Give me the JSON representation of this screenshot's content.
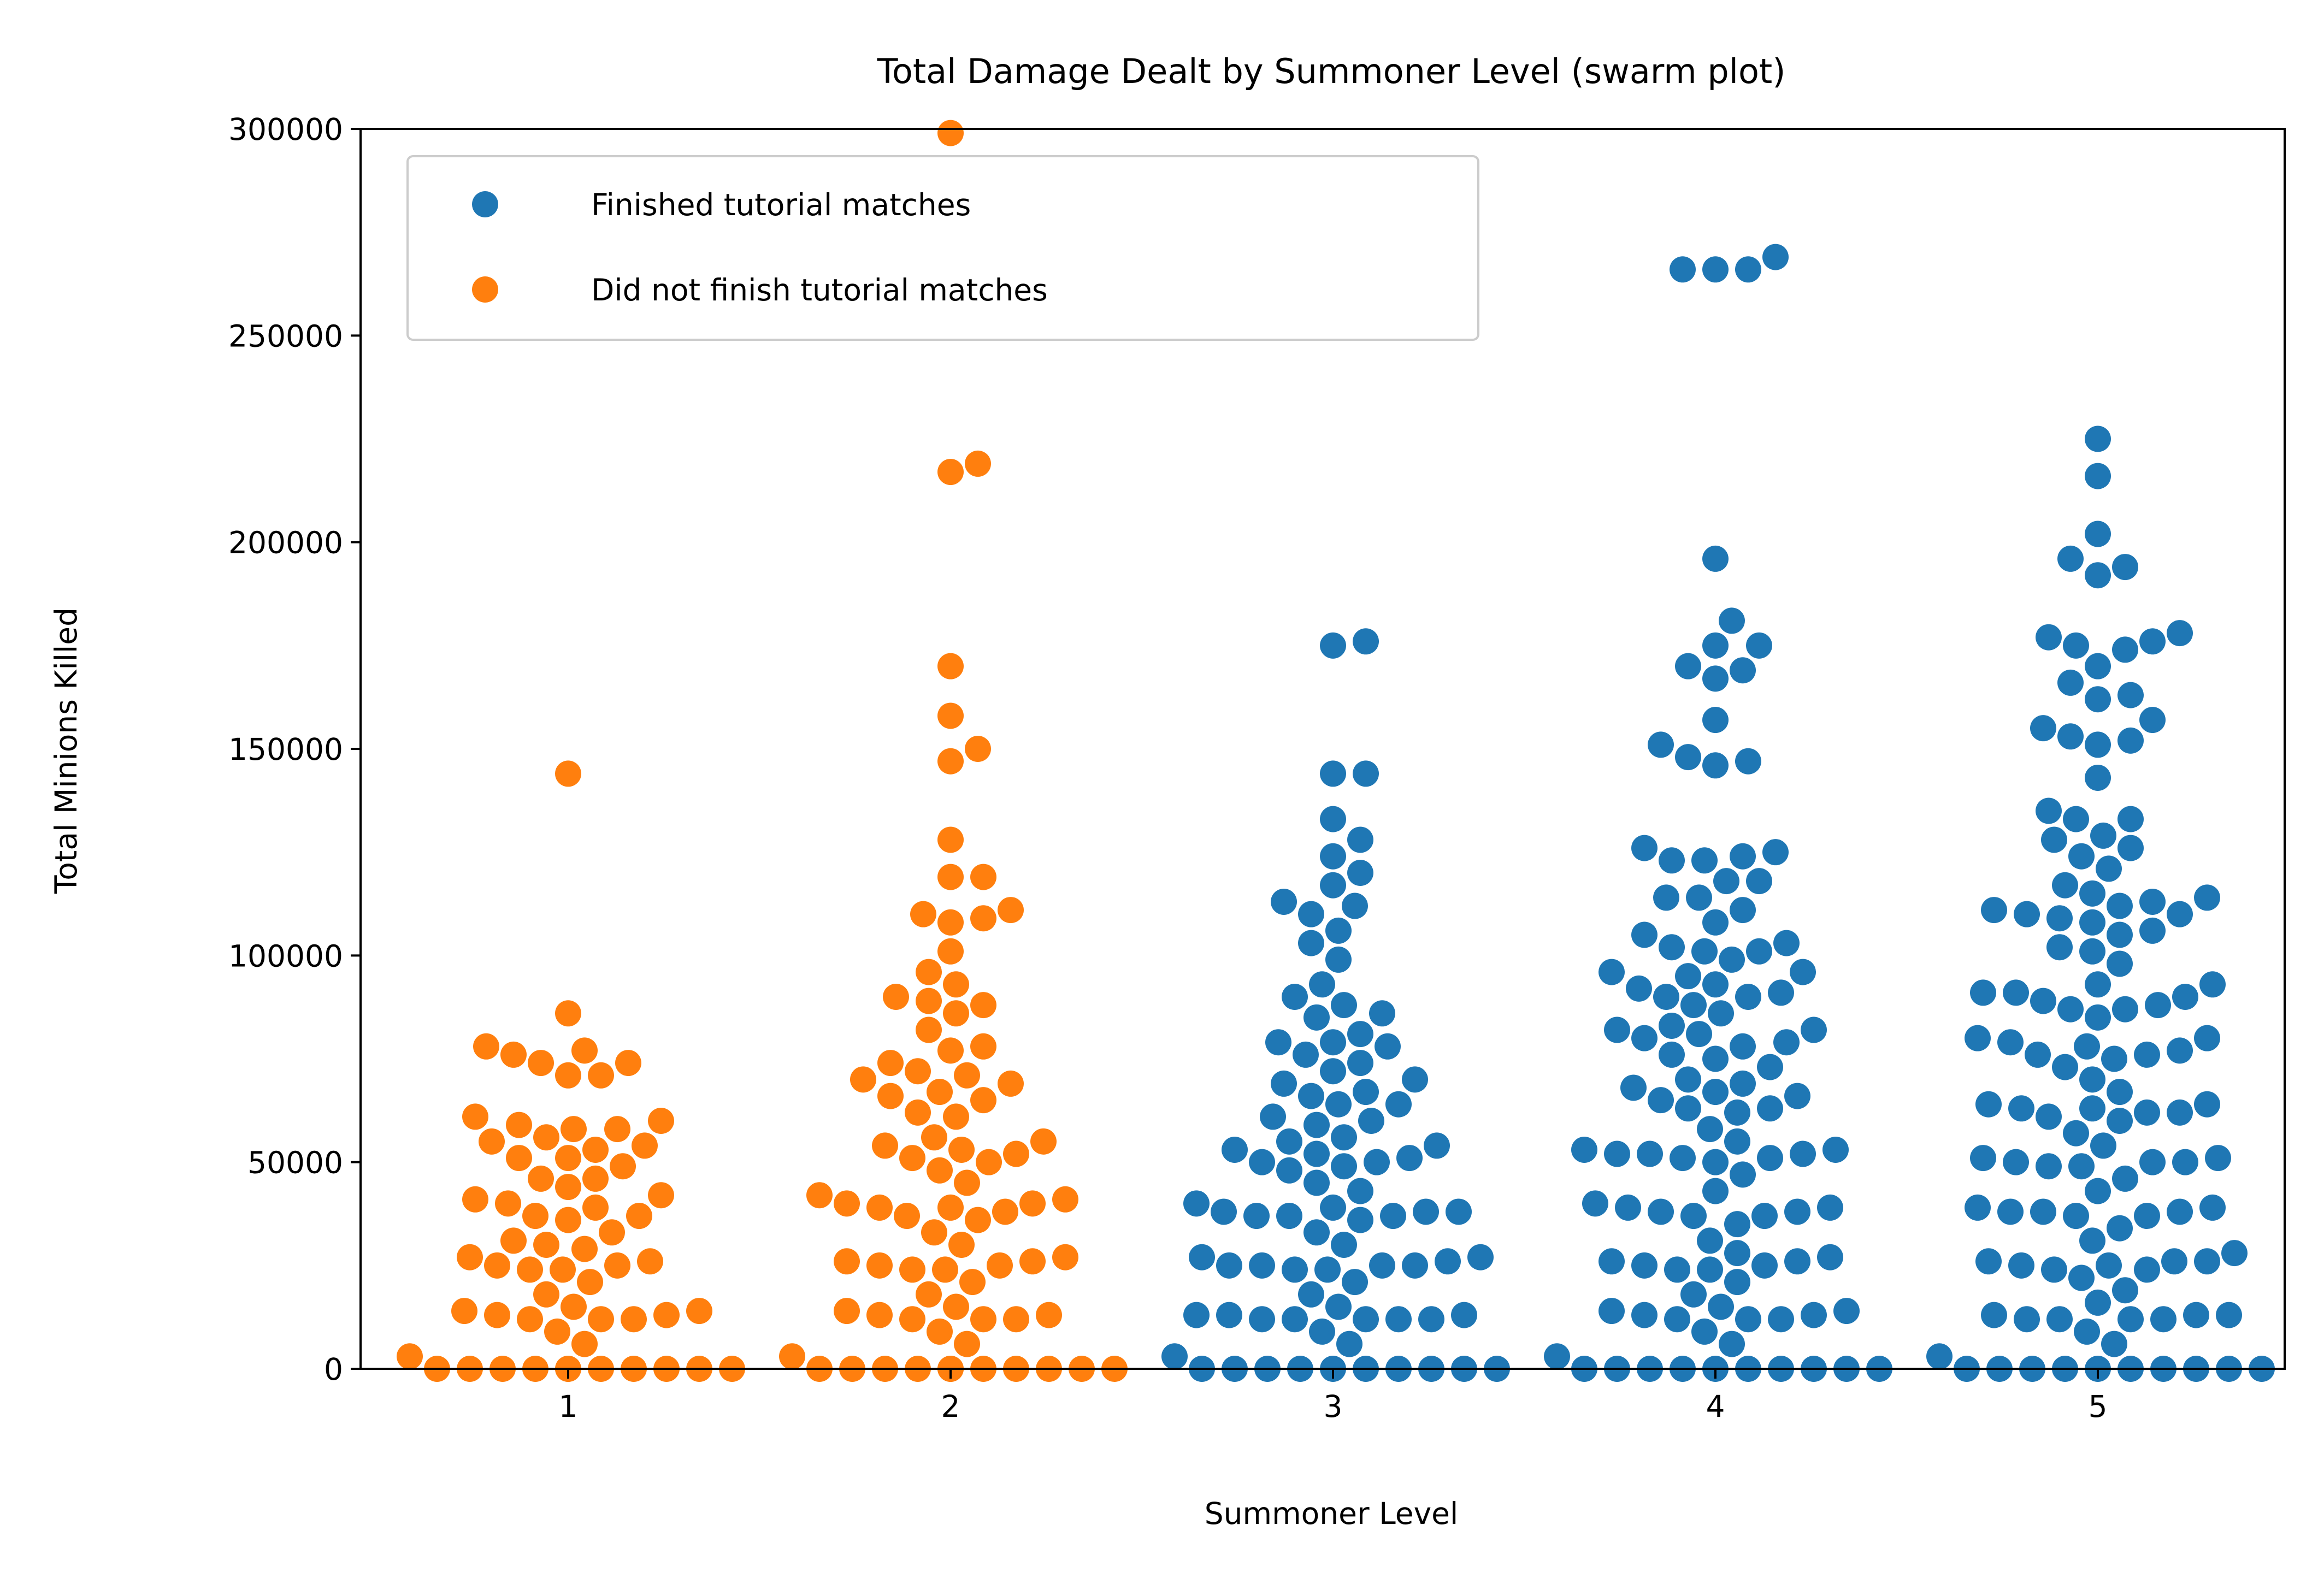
{
  "chart_data": {
    "type": "scatter",
    "subtype": "swarm",
    "title": "Total Damage Dealt by Summoner Level (swarm plot)",
    "xlabel": "Summoner Level",
    "ylabel": "Total Minions Killed",
    "categories": [
      "1",
      "2",
      "3",
      "4",
      "5"
    ],
    "ylim": [
      0,
      300000
    ],
    "yticks": [
      "0",
      "50000",
      "100000",
      "150000",
      "200000",
      "250000",
      "300000"
    ],
    "grid": false,
    "legend_position": "upper-left",
    "colors": {
      "finished": "#1f77b4",
      "not_finished": "#ff7f0e"
    },
    "series": [
      {
        "name": "Finished tutorial matches",
        "color": "#1f77b4",
        "category_values": {
          "3": [
            176000,
            175000,
            144000,
            144000,
            133000,
            128000,
            124000,
            120000,
            117000,
            113000,
            112000,
            110000,
            106000,
            103000,
            99000,
            93000,
            90000,
            88000,
            86000,
            85000,
            81000,
            79000,
            79000,
            78000,
            76000,
            74000,
            72000,
            70000,
            69000,
            67000,
            66000,
            64000,
            64000,
            61000,
            60000,
            59000,
            56000,
            55000,
            54000,
            53000,
            52000,
            51000,
            50000,
            50000,
            49000,
            48000,
            45000,
            43000,
            40000,
            39000,
            38000,
            38000,
            38000,
            37000,
            37000,
            37000,
            36000,
            33000,
            30000,
            27000,
            27000,
            26000,
            25000,
            25000,
            25000,
            25000,
            24000,
            24000,
            21000,
            18000,
            15000,
            13000,
            13000,
            13000,
            12000,
            12000,
            12000,
            12000,
            12000,
            9000,
            6000,
            3000,
            0,
            0,
            0,
            0,
            0,
            0,
            0,
            0,
            0,
            0
          ],
          "4": [
            269000,
            266000,
            266000,
            266000,
            196000,
            181000,
            175000,
            175000,
            170000,
            169000,
            167000,
            157000,
            151000,
            148000,
            147000,
            146000,
            126000,
            125000,
            124000,
            123000,
            123000,
            118000,
            118000,
            114000,
            114000,
            111000,
            108000,
            105000,
            103000,
            102000,
            101000,
            101000,
            99000,
            96000,
            96000,
            95000,
            93000,
            92000,
            91000,
            90000,
            90000,
            88000,
            86000,
            83000,
            82000,
            82000,
            81000,
            80000,
            79000,
            78000,
            76000,
            75000,
            73000,
            70000,
            69000,
            68000,
            67000,
            66000,
            65000,
            63000,
            63000,
            62000,
            58000,
            55000,
            53000,
            53000,
            52000,
            52000,
            52000,
            51000,
            51000,
            50000,
            47000,
            43000,
            40000,
            39000,
            39000,
            38000,
            38000,
            37000,
            37000,
            35000,
            31000,
            28000,
            27000,
            26000,
            26000,
            25000,
            25000,
            24000,
            24000,
            21000,
            18000,
            15000,
            14000,
            14000,
            13000,
            13000,
            12000,
            12000,
            12000,
            9000,
            6000,
            3000,
            0,
            0,
            0,
            0,
            0,
            0,
            0,
            0,
            0,
            0
          ],
          "5": [
            225000,
            216000,
            202000,
            196000,
            194000,
            192000,
            178000,
            176000,
            177000,
            175000,
            174000,
            170000,
            166000,
            163000,
            162000,
            157000,
            155000,
            153000,
            152000,
            151000,
            143000,
            135000,
            133000,
            133000,
            129000,
            128000,
            126000,
            124000,
            121000,
            117000,
            115000,
            114000,
            113000,
            112000,
            111000,
            110000,
            110000,
            109000,
            108000,
            106000,
            105000,
            102000,
            101000,
            98000,
            93000,
            93000,
            91000,
            91000,
            90000,
            89000,
            88000,
            87000,
            87000,
            85000,
            80000,
            80000,
            79000,
            78000,
            77000,
            76000,
            76000,
            75000,
            73000,
            70000,
            67000,
            64000,
            64000,
            63000,
            63000,
            62000,
            62000,
            61000,
            60000,
            57000,
            54000,
            51000,
            51000,
            50000,
            50000,
            50000,
            49000,
            49000,
            46000,
            43000,
            39000,
            39000,
            38000,
            38000,
            38000,
            37000,
            37000,
            34000,
            31000,
            28000,
            26000,
            26000,
            26000,
            25000,
            25000,
            24000,
            24000,
            22000,
            19000,
            16000,
            13000,
            13000,
            13000,
            12000,
            12000,
            12000,
            12000,
            9000,
            6000,
            3000,
            0,
            0,
            0,
            0,
            0,
            0,
            0,
            0,
            0,
            0
          ]
        }
      },
      {
        "name": "Did not finish tutorial matches",
        "color": "#ff7f0e",
        "category_values": {
          "1": [
            144000,
            86000,
            78000,
            77000,
            76000,
            74000,
            74000,
            71000,
            71000,
            61000,
            60000,
            59000,
            58000,
            58000,
            56000,
            55000,
            54000,
            53000,
            51000,
            51000,
            49000,
            46000,
            46000,
            44000,
            42000,
            41000,
            40000,
            39000,
            37000,
            37000,
            36000,
            33000,
            31000,
            30000,
            29000,
            27000,
            26000,
            25000,
            25000,
            24000,
            24000,
            21000,
            18000,
            15000,
            14000,
            14000,
            13000,
            13000,
            12000,
            12000,
            12000,
            9000,
            6000,
            3000,
            0,
            0,
            0,
            0,
            0,
            0,
            0,
            0,
            0,
            0,
            0
          ],
          "2": [
            299000,
            219000,
            217000,
            170000,
            158000,
            150000,
            147000,
            128000,
            119000,
            119000,
            111000,
            110000,
            109000,
            108000,
            101000,
            96000,
            93000,
            90000,
            89000,
            88000,
            86000,
            82000,
            78000,
            77000,
            74000,
            72000,
            71000,
            70000,
            69000,
            67000,
            66000,
            65000,
            62000,
            61000,
            56000,
            55000,
            54000,
            53000,
            52000,
            51000,
            50000,
            48000,
            45000,
            42000,
            41000,
            40000,
            40000,
            39000,
            39000,
            38000,
            37000,
            36000,
            33000,
            30000,
            27000,
            26000,
            26000,
            25000,
            25000,
            24000,
            24000,
            21000,
            18000,
            15000,
            14000,
            13000,
            13000,
            12000,
            12000,
            12000,
            9000,
            6000,
            3000,
            0,
            0,
            0,
            0,
            0,
            0,
            0,
            0,
            0,
            0,
            0
          ]
        }
      }
    ]
  }
}
